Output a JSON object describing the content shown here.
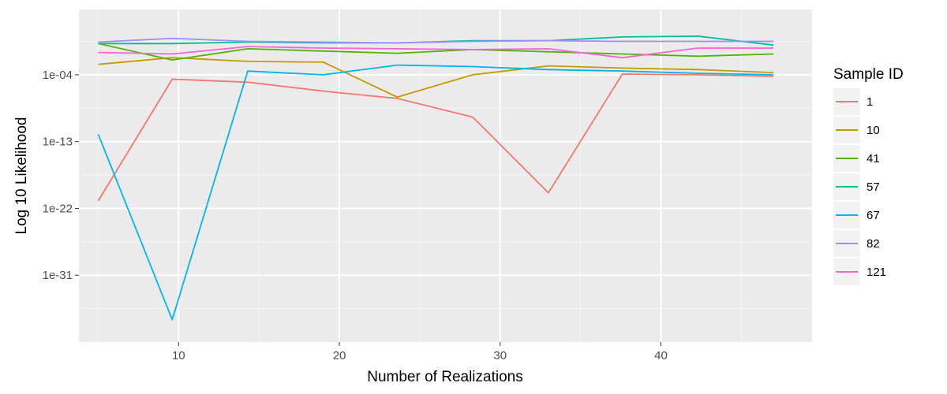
{
  "chart_data": {
    "type": "line",
    "title": "",
    "xlabel": "Number of Realizations",
    "ylabel": "Log 10 Likelihood",
    "y_scale": "log10",
    "xlim": [
      3.8,
      49.4
    ],
    "ylim_log10": [
      -40.0,
      4.8
    ],
    "x_ticks": [
      10,
      20,
      30,
      40
    ],
    "x_tick_labels": [
      "10",
      "20",
      "30",
      "40"
    ],
    "y_ticks_log10": [
      -31,
      -22,
      -13,
      -4
    ],
    "y_tick_labels": [
      "1e-31",
      "1e-22",
      "1e-13",
      "1e-04"
    ],
    "grid": true,
    "legend_title": "Sample ID",
    "legend_position": "right",
    "x": [
      5,
      9.6,
      14.3,
      19,
      23.6,
      28.3,
      33,
      37.6,
      42.3,
      47
    ],
    "series": [
      {
        "name": "1",
        "color": "#F8766D",
        "log10_values": [
          -21.0,
          -4.6,
          -5.0,
          -6.2,
          -7.2,
          -9.7,
          -19.9,
          -3.9,
          -4.0,
          -4.2
        ]
      },
      {
        "name": "10",
        "color": "#C49A00",
        "log10_values": [
          -2.6,
          -1.7,
          -2.2,
          -2.3,
          -7.0,
          -4.0,
          -2.8,
          -3.1,
          -3.3,
          -3.7
        ]
      },
      {
        "name": "41",
        "color": "#53B400",
        "log10_values": [
          0.2,
          -2.0,
          -0.5,
          -0.8,
          -1.1,
          -0.6,
          -0.9,
          -1.2,
          -1.5,
          -1.2
        ]
      },
      {
        "name": "57",
        "color": "#00C094",
        "log10_values": [
          0.2,
          0.2,
          0.4,
          0.3,
          0.3,
          0.6,
          0.6,
          1.1,
          1.2,
          0.0
        ]
      },
      {
        "name": "67",
        "color": "#00B6EB",
        "log10_values": [
          -12.0,
          -37.0,
          -3.5,
          -4.0,
          -2.7,
          -2.9,
          -3.3,
          -3.5,
          -3.8,
          -4.0
        ]
      },
      {
        "name": "82",
        "color": "#A58AFF",
        "log10_values": [
          0.4,
          0.9,
          0.5,
          0.4,
          0.3,
          0.5,
          0.6,
          0.5,
          0.5,
          0.5
        ]
      },
      {
        "name": "121",
        "color": "#FB61D7",
        "log10_values": [
          -1.0,
          -1.2,
          -0.2,
          -0.4,
          -0.5,
          -0.6,
          -0.5,
          -1.7,
          -0.4,
          -0.4
        ]
      }
    ]
  }
}
